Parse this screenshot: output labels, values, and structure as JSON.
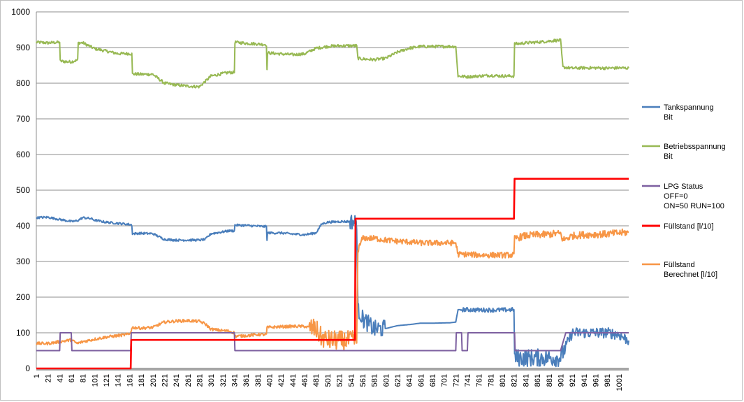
{
  "chart_data": {
    "type": "line",
    "title": "",
    "xlabel": "",
    "ylabel": "",
    "ylim": [
      0,
      1000
    ],
    "yticks": [
      0,
      100,
      200,
      300,
      400,
      500,
      600,
      700,
      800,
      900,
      1000
    ],
    "xlim": [
      1,
      1018
    ],
    "xtick_labels": [
      "1",
      "21",
      "41",
      "61",
      "81",
      "101",
      "121",
      "141",
      "161",
      "181",
      "201",
      "221",
      "241",
      "261",
      "281",
      "301",
      "321",
      "341",
      "361",
      "381",
      "401",
      "421",
      "441",
      "461",
      "481",
      "501",
      "521",
      "541",
      "561",
      "581",
      "601",
      "621",
      "641",
      "661",
      "681",
      "701",
      "721",
      "741",
      "761",
      "781",
      "801",
      "821",
      "841",
      "861",
      "881",
      "901",
      "921",
      "941",
      "961",
      "981",
      "1001"
    ],
    "grid": "horizontal",
    "legend_position": "right",
    "series": [
      {
        "name": "Tankspannung Bit",
        "label_lines": [
          "Tankspannung",
          "Bit"
        ],
        "color": "#4a7ebb",
        "points": [
          [
            1,
            423
          ],
          [
            21,
            424
          ],
          [
            41,
            418
          ],
          [
            55,
            414
          ],
          [
            61,
            412
          ],
          [
            71,
            414
          ],
          [
            81,
            423
          ],
          [
            95,
            420
          ],
          [
            101,
            416
          ],
          [
            121,
            410
          ],
          [
            141,
            407
          ],
          [
            161,
            404
          ],
          [
            165,
            402
          ],
          [
            166,
            378
          ],
          [
            181,
            379
          ],
          [
            201,
            378
          ],
          [
            221,
            362
          ],
          [
            241,
            360
          ],
          [
            261,
            360
          ],
          [
            281,
            360
          ],
          [
            291,
            362
          ],
          [
            301,
            378
          ],
          [
            321,
            383
          ],
          [
            331,
            386
          ],
          [
            341,
            386
          ],
          [
            342,
            402
          ],
          [
            361,
            401
          ],
          [
            381,
            399
          ],
          [
            396,
            398
          ],
          [
            397,
            362
          ],
          [
            398,
            380
          ],
          [
            421,
            380
          ],
          [
            441,
            377
          ],
          [
            461,
            375
          ],
          [
            481,
            380
          ],
          [
            491,
            405
          ],
          [
            501,
            410
          ],
          [
            521,
            412
          ],
          [
            541,
            412
          ],
          [
            551,
            410
          ],
          [
            553,
            165
          ],
          [
            561,
            140
          ],
          [
            581,
            110
          ],
          [
            601,
            112
          ],
          [
            621,
            120
          ],
          [
            641,
            123
          ],
          [
            661,
            127
          ],
          [
            681,
            127
          ],
          [
            711,
            128
          ],
          [
            721,
            130
          ],
          [
            725,
            165
          ],
          [
            741,
            165
          ],
          [
            761,
            164
          ],
          [
            781,
            164
          ],
          [
            801,
            164
          ],
          [
            821,
            165
          ],
          [
            822,
            30
          ],
          [
            841,
            30
          ],
          [
            861,
            30
          ],
          [
            881,
            30
          ],
          [
            891,
            30
          ],
          [
            901,
            30
          ],
          [
            905,
            45
          ],
          [
            921,
            100
          ],
          [
            941,
            100
          ],
          [
            961,
            100
          ],
          [
            981,
            100
          ],
          [
            1001,
            95
          ],
          [
            1018,
            78
          ]
        ]
      },
      {
        "name": "Betriebsspannung Bit",
        "label_lines": [
          "Betriebsspannung",
          "Bit"
        ],
        "color": "#98b954",
        "points": [
          [
            1,
            915
          ],
          [
            21,
            913
          ],
          [
            41,
            915
          ],
          [
            42,
            862
          ],
          [
            55,
            860
          ],
          [
            61,
            860
          ],
          [
            72,
            865
          ],
          [
            73,
            913
          ],
          [
            81,
            913
          ],
          [
            101,
            897
          ],
          [
            121,
            890
          ],
          [
            141,
            883
          ],
          [
            161,
            883
          ],
          [
            165,
            882
          ],
          [
            166,
            826
          ],
          [
            181,
            825
          ],
          [
            201,
            825
          ],
          [
            221,
            800
          ],
          [
            241,
            795
          ],
          [
            261,
            792
          ],
          [
            281,
            790
          ],
          [
            291,
            805
          ],
          [
            301,
            820
          ],
          [
            321,
            827
          ],
          [
            331,
            830
          ],
          [
            341,
            830
          ],
          [
            342,
            915
          ],
          [
            361,
            912
          ],
          [
            381,
            910
          ],
          [
            396,
            908
          ],
          [
            397,
            835
          ],
          [
            398,
            885
          ],
          [
            421,
            882
          ],
          [
            441,
            880
          ],
          [
            461,
            882
          ],
          [
            481,
            898
          ],
          [
            501,
            903
          ],
          [
            521,
            905
          ],
          [
            541,
            905
          ],
          [
            551,
            905
          ],
          [
            553,
            870
          ],
          [
            561,
            868
          ],
          [
            581,
            866
          ],
          [
            601,
            870
          ],
          [
            621,
            887
          ],
          [
            641,
            898
          ],
          [
            661,
            903
          ],
          [
            681,
            903
          ],
          [
            711,
            903
          ],
          [
            721,
            903
          ],
          [
            725,
            820
          ],
          [
            741,
            818
          ],
          [
            761,
            820
          ],
          [
            781,
            822
          ],
          [
            801,
            820
          ],
          [
            821,
            820
          ],
          [
            822,
            910
          ],
          [
            841,
            913
          ],
          [
            861,
            915
          ],
          [
            881,
            918
          ],
          [
            891,
            920
          ],
          [
            901,
            920
          ],
          [
            905,
            845
          ],
          [
            921,
            842
          ],
          [
            941,
            843
          ],
          [
            961,
            843
          ],
          [
            981,
            842
          ],
          [
            1001,
            843
          ],
          [
            1018,
            842
          ]
        ]
      },
      {
        "name": "LPG Status OFF=0 ON=50 RUN=100",
        "label_lines": [
          "LPG Status",
          "OFF=0",
          "ON=50 RUN=100"
        ],
        "color": "#7d60a0",
        "points": [
          [
            1,
            50
          ],
          [
            41,
            50
          ],
          [
            42,
            100
          ],
          [
            61,
            100
          ],
          [
            62,
            50
          ],
          [
            163,
            50
          ],
          [
            164,
            100
          ],
          [
            341,
            100
          ],
          [
            342,
            50
          ],
          [
            721,
            50
          ],
          [
            722,
            100
          ],
          [
            731,
            100
          ],
          [
            732,
            50
          ],
          [
            741,
            50
          ],
          [
            742,
            100
          ],
          [
            822,
            100
          ],
          [
            823,
            50
          ],
          [
            901,
            50
          ],
          [
            910,
            100
          ],
          [
            1018,
            100
          ]
        ]
      },
      {
        "name": "Füllstand [l/10]",
        "label_lines": [
          "Füllstand [l/10]"
        ],
        "color": "#ff0000",
        "points": [
          [
            1,
            0
          ],
          [
            163,
            0
          ],
          [
            164,
            80
          ],
          [
            341,
            80
          ],
          [
            342,
            80
          ],
          [
            548,
            80
          ],
          [
            549,
            420
          ],
          [
            821,
            420
          ],
          [
            822,
            532
          ],
          [
            1018,
            532
          ]
        ]
      },
      {
        "name": "Füllstand Berechnet [l/10]",
        "label_lines": [
          "Füllstand",
          "Berechnet [l/10]"
        ],
        "color": "#f79646",
        "points": [
          [
            1,
            70
          ],
          [
            21,
            70
          ],
          [
            41,
            75
          ],
          [
            61,
            80
          ],
          [
            71,
            70
          ],
          [
            81,
            75
          ],
          [
            101,
            82
          ],
          [
            121,
            88
          ],
          [
            141,
            92
          ],
          [
            161,
            96
          ],
          [
            166,
            115
          ],
          [
            181,
            113
          ],
          [
            201,
            115
          ],
          [
            221,
            130
          ],
          [
            241,
            133
          ],
          [
            261,
            134
          ],
          [
            281,
            132
          ],
          [
            291,
            125
          ],
          [
            301,
            110
          ],
          [
            321,
            106
          ],
          [
            331,
            105
          ],
          [
            341,
            100
          ],
          [
            342,
            90
          ],
          [
            361,
            92
          ],
          [
            381,
            95
          ],
          [
            396,
            95
          ],
          [
            397,
            115
          ],
          [
            421,
            117
          ],
          [
            441,
            118
          ],
          [
            461,
            118
          ],
          [
            481,
            110
          ],
          [
            491,
            85
          ],
          [
            501,
            80
          ],
          [
            521,
            78
          ],
          [
            541,
            78
          ],
          [
            551,
            80
          ],
          [
            553,
            330
          ],
          [
            561,
            365
          ],
          [
            581,
            365
          ],
          [
            601,
            360
          ],
          [
            621,
            357
          ],
          [
            641,
            355
          ],
          [
            661,
            352
          ],
          [
            681,
            352
          ],
          [
            711,
            352
          ],
          [
            721,
            352
          ],
          [
            725,
            320
          ],
          [
            741,
            320
          ],
          [
            761,
            318
          ],
          [
            781,
            318
          ],
          [
            801,
            318
          ],
          [
            821,
            318
          ],
          [
            822,
            365
          ],
          [
            841,
            372
          ],
          [
            861,
            375
          ],
          [
            881,
            376
          ],
          [
            891,
            378
          ],
          [
            901,
            378
          ],
          [
            905,
            360
          ],
          [
            921,
            372
          ],
          [
            941,
            375
          ],
          [
            961,
            376
          ],
          [
            981,
            377
          ],
          [
            1001,
            380
          ],
          [
            1018,
            382
          ]
        ]
      }
    ]
  }
}
